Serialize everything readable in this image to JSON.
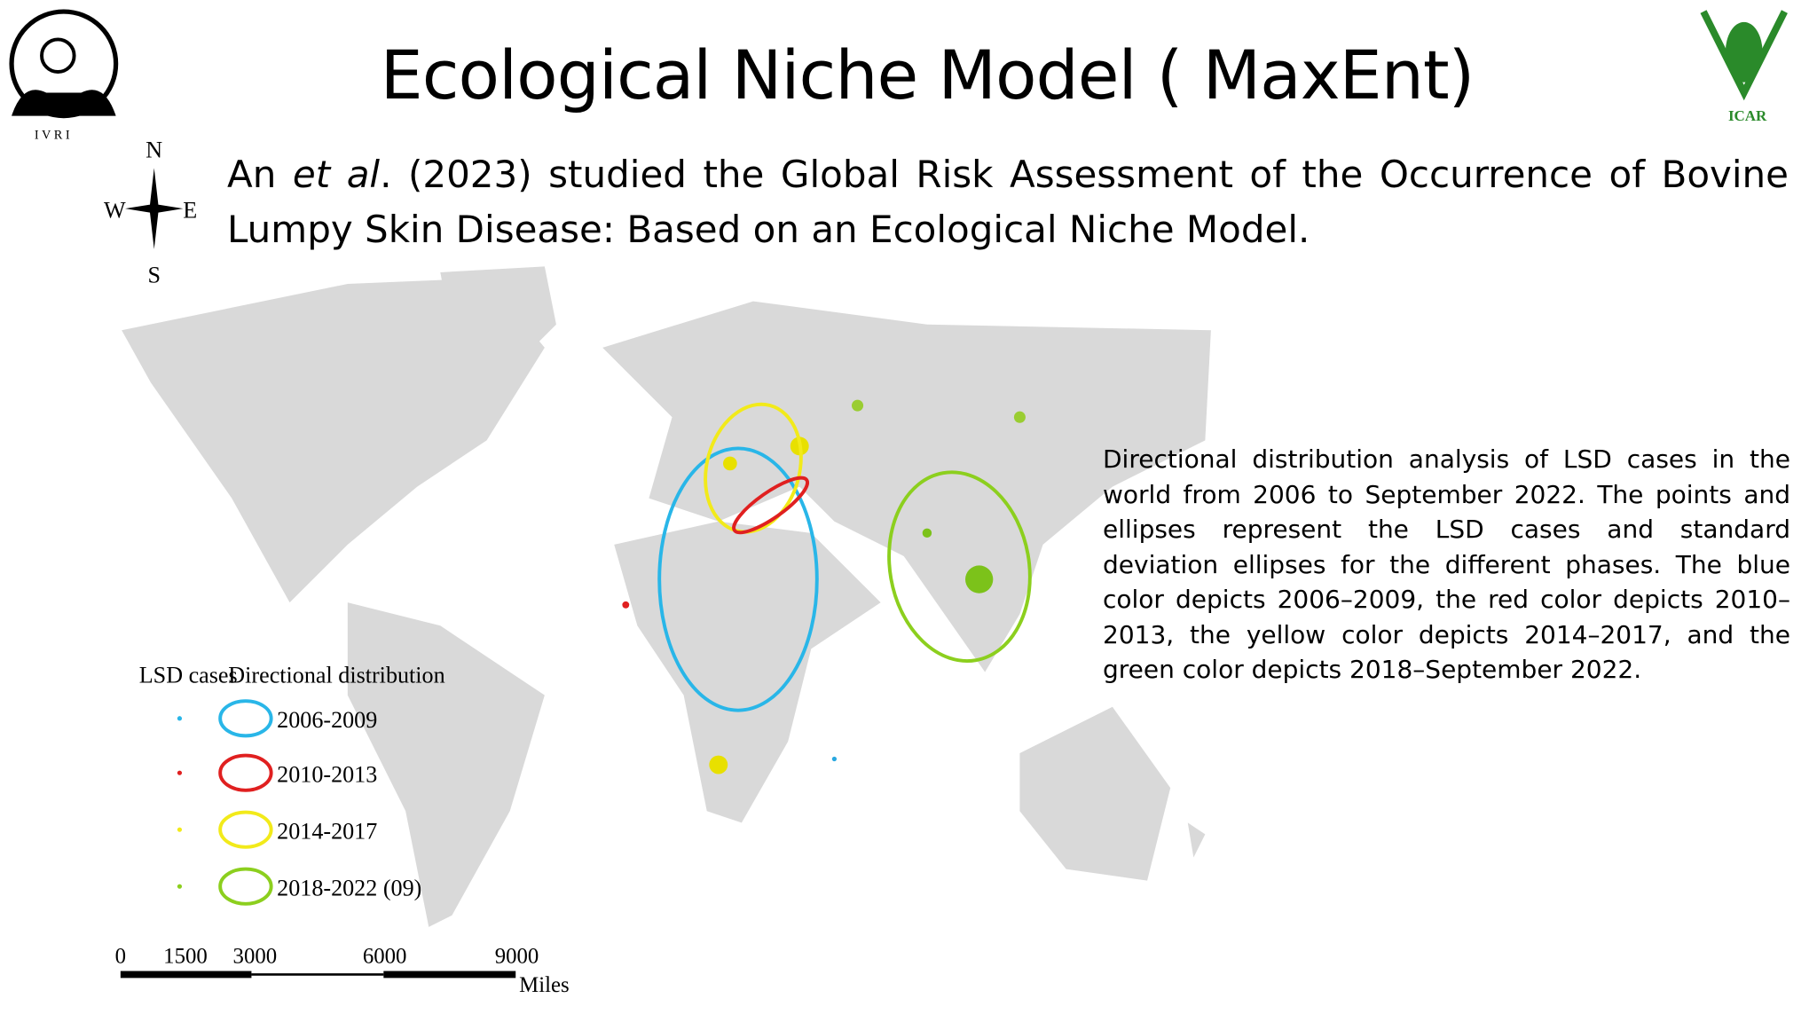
{
  "header": {
    "title": "Ecological Niche Model ( MaxEnt)",
    "left_logo": "I V R I",
    "right_logo": "ICAR"
  },
  "intro": {
    "before": "An ",
    "italic": "et al",
    "after": ". (2023) studied the Global Risk Assessment of the Occurrence of Bovine Lumpy Skin Disease: Based on an Ecological Niche Model."
  },
  "compass": {
    "north": "N",
    "south": "S",
    "west": "W",
    "east": "E"
  },
  "caption": "Directional distribution analysis of LSD cases in the world from 2006 to September 2022. The points and ellipses represent the LSD cases and standard deviation ellipses for the different phases. The blue color depicts 2006–2009, the red color depicts 2010–2013, the yellow color depicts 2014–2017, and the green color depicts 2018–September 2022.",
  "map": {
    "legend": {
      "cases_heading": "LSD cases",
      "distribution_heading": "Directional distribution",
      "entries": [
        "2006-2009",
        "2010-2013",
        "2014-2017",
        "2018-2022 (09)"
      ]
    },
    "scale": {
      "ticks": [
        "0",
        "1500",
        "3000",
        "6000",
        "9000"
      ],
      "unit": "Miles"
    }
  }
}
